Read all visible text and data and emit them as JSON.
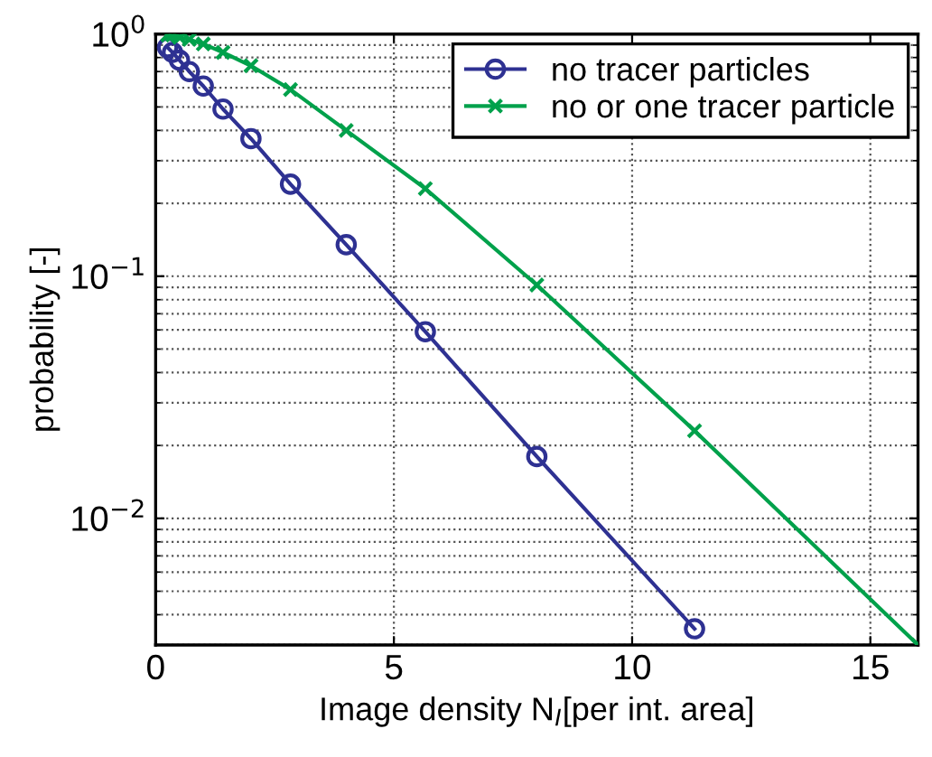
{
  "chart_data": {
    "type": "line",
    "xlabel": "Image density N$_{I}$[per int. area]",
    "ylabel": "probability [-]",
    "x": [
      0.25,
      0.354,
      0.5,
      0.707,
      1,
      1.414,
      2,
      2.83,
      4,
      5.66,
      8,
      11.31
    ],
    "series": [
      {
        "name": "no tracer particles",
        "color": "#2e3192",
        "marker": "circle",
        "values": [
          0.88,
          0.84,
          0.78,
          0.7,
          0.61,
          0.49,
          0.37,
          0.24,
          0.135,
          0.059,
          0.018,
          0.0035
        ]
      },
      {
        "name": "no or one tracer particle",
        "color": "#00a14b",
        "marker": "cross",
        "x": [
          0.25,
          0.354,
          0.5,
          0.707,
          1,
          1.414,
          2,
          2.83,
          4,
          5.66,
          8,
          11.31,
          16
        ],
        "values": [
          0.99,
          0.99,
          0.97,
          0.95,
          0.91,
          0.84,
          0.74,
          0.59,
          0.4,
          0.23,
          0.092,
          0.023,
          0.003
        ]
      }
    ],
    "log": "y",
    "xlim": [
      0,
      16
    ],
    "ylim": [
      0.003,
      1
    ],
    "xticks": [
      0,
      5,
      10,
      15
    ],
    "yticks": [
      {
        "value": 1,
        "label": "10$^{0}$"
      },
      {
        "value": 0.1,
        "label": "10$^{−1}$"
      },
      {
        "value": 0.01,
        "label": "10$^{−2}$"
      }
    ],
    "grid": true,
    "legend": "top right",
    "line_style": "solid"
  }
}
